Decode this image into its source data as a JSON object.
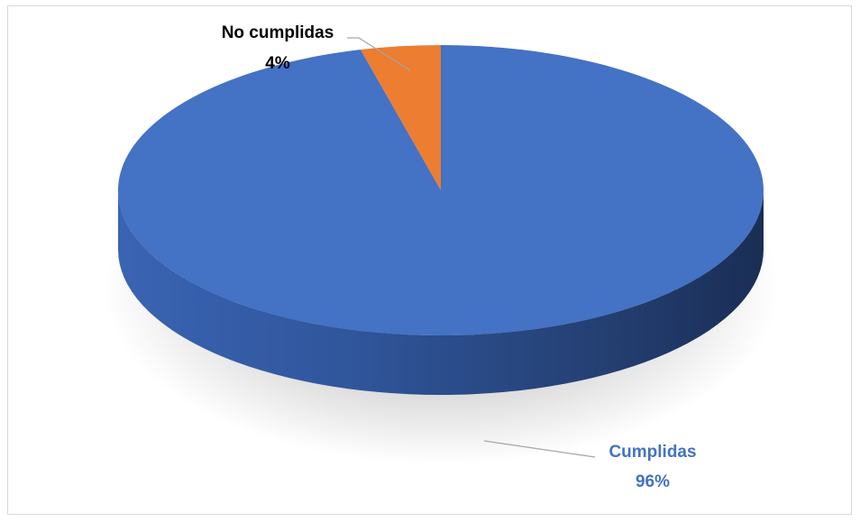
{
  "chart_data": {
    "type": "pie",
    "style": "3d",
    "title": "",
    "slices": [
      {
        "label": "Cumplidas",
        "value": 96,
        "value_label": "96%",
        "color": "#4472C4"
      },
      {
        "label": "No cumplidas",
        "value": 4,
        "value_label": "4%",
        "color": "#ED7D31"
      }
    ],
    "legend": "none",
    "label_colors": {
      "Cumplidas": "#4472C4",
      "No cumplidas": "#000000"
    }
  }
}
